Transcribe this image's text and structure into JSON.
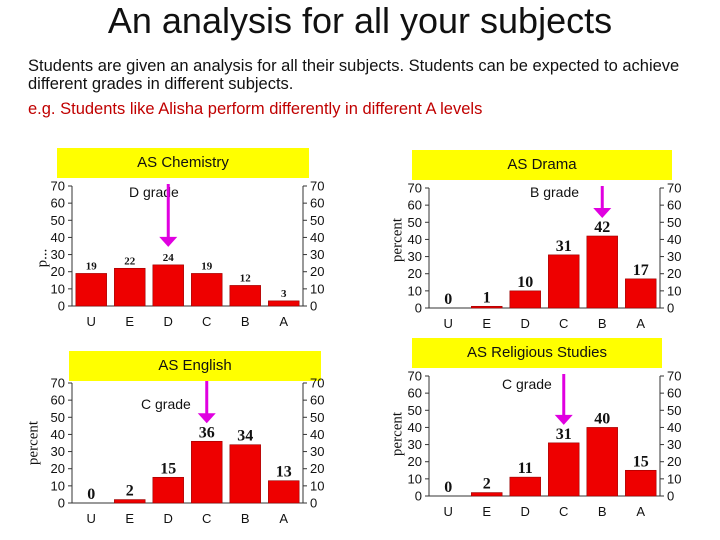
{
  "header": {
    "title": "An analysis for all your subjects",
    "intro": "Students are given an analysis for all their subjects. Students can be expected to achieve different grades in different subjects.",
    "example": "e.g. Students like Alisha perform differently in different A levels"
  },
  "colors": {
    "bar": "#ee0000",
    "banner": "#ffff00",
    "arrow": "#e000e0",
    "example_text": "#c00000"
  },
  "chart_data": [
    {
      "type": "bar",
      "title": "AS Chemistry",
      "annotation": "D grade",
      "highlight": "D",
      "ylabel": "p...",
      "categories": [
        "U",
        "E",
        "D",
        "C",
        "B",
        "A"
      ],
      "values": [
        19,
        22,
        24,
        19,
        12,
        3
      ],
      "ylim": [
        0,
        70
      ],
      "yticks": [
        0,
        10,
        20,
        30,
        40,
        50,
        60,
        70
      ]
    },
    {
      "type": "bar",
      "title": "AS Drama",
      "annotation": "B grade",
      "highlight": "B",
      "ylabel": "percent",
      "categories": [
        "U",
        "E",
        "D",
        "C",
        "B",
        "A"
      ],
      "values": [
        0,
        1,
        10,
        31,
        42,
        17
      ],
      "ylim": [
        0,
        70
      ],
      "yticks": [
        0,
        10,
        20,
        30,
        40,
        50,
        60,
        70
      ]
    },
    {
      "type": "bar",
      "title": "AS English",
      "annotation": "C grade",
      "highlight": "C",
      "ylabel": "percent",
      "categories": [
        "U",
        "E",
        "D",
        "C",
        "B",
        "A"
      ],
      "values": [
        0,
        2,
        15,
        36,
        34,
        13
      ],
      "ylim": [
        0,
        70
      ],
      "yticks": [
        0,
        10,
        20,
        30,
        40,
        50,
        60,
        70
      ]
    },
    {
      "type": "bar",
      "title": "AS Religious Studies",
      "annotation": "C grade",
      "highlight": "C",
      "ylabel": "percent",
      "categories": [
        "U",
        "E",
        "D",
        "C",
        "B",
        "A"
      ],
      "values": [
        0,
        2,
        11,
        31,
        40,
        15
      ],
      "ylim": [
        0,
        70
      ],
      "yticks": [
        0,
        10,
        20,
        30,
        40,
        50,
        60,
        70
      ]
    }
  ]
}
